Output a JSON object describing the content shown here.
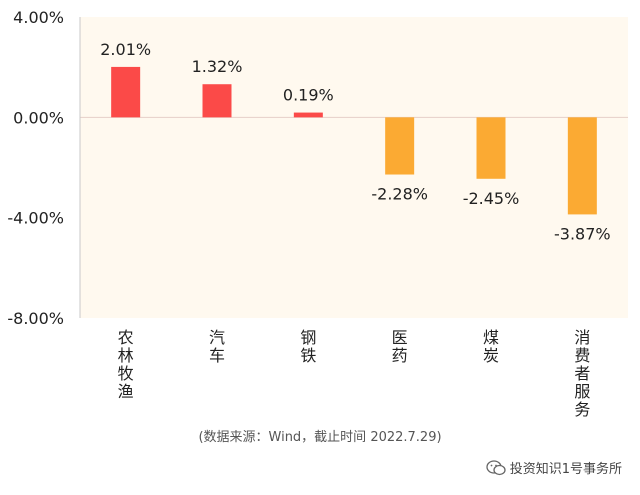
{
  "chart_data": {
    "type": "bar",
    "categories": [
      "农林牧渔",
      "汽车",
      "钢铁",
      "医药",
      "煤炭",
      "消费者服务"
    ],
    "values": [
      2.01,
      1.32,
      0.19,
      -2.28,
      -2.45,
      -3.87
    ],
    "value_labels": [
      "2.01%",
      "1.32%",
      "0.19%",
      "-2.28%",
      "-2.45%",
      "-3.87%"
    ],
    "y_ticks": [
      4,
      0,
      -4,
      -8
    ],
    "y_tick_labels": [
      "4.00%",
      "0.00%",
      "-4.00%",
      "-8.00%"
    ],
    "ylim": [
      -8,
      4
    ],
    "grid": false,
    "colors": {
      "positive": "#fb4a48",
      "negative": "#fbaa33",
      "plot_background": "#fff9ef",
      "zero_line": "#e6cfc8",
      "axis": "#c8c8c8"
    }
  },
  "source_note": "(数据来源：Wind，截止时间 2022.7.29)",
  "watermark": {
    "icon": "wechat-icon",
    "text": "投资知识1号事务所"
  }
}
